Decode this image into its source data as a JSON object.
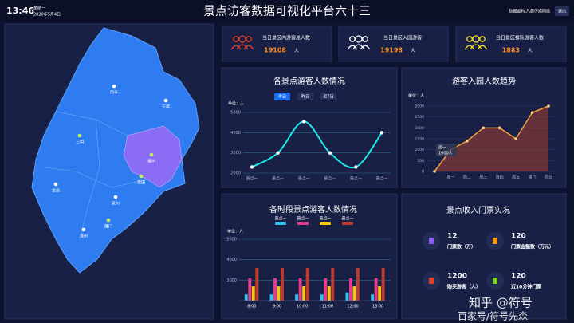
{
  "header": {
    "time": "13:46",
    "weekday": "星期一",
    "date": "2020年5月4日",
    "title": "景点访客数据可视化平台六十三",
    "source": "数据虚构,凡晨传媒网络",
    "exit": "退出"
  },
  "map": {
    "cities": [
      "南平",
      "宁德",
      "三明",
      "福州",
      "莆田",
      "龙岩",
      "泉州",
      "厦门",
      "漳州"
    ]
  },
  "stats": [
    {
      "label": "当日景区内游客总人数",
      "value": 19108,
      "unit": "人",
      "color": "#e8402a"
    },
    {
      "label": "当日景区入园游客",
      "value": 19198,
      "unit": "人",
      "color": "#ffffff"
    },
    {
      "label": "当日景区排队游客人数",
      "value": 1883,
      "unit": "人",
      "color": "#f5e21a"
    }
  ],
  "chart_data": [
    {
      "type": "line",
      "title": "各景点游客人数情况",
      "tabs": [
        "今日",
        "昨日",
        "近7日"
      ],
      "y_label": "单位：人",
      "categories": [
        "景点一",
        "景点一",
        "景点一",
        "景点一",
        "景点一",
        "景点一"
      ],
      "values": [
        2300,
        3000,
        4550,
        3000,
        2300,
        4000
      ],
      "color": "#1de9e9",
      "ylim": [
        2000,
        5000
      ],
      "yticks": [
        2000,
        3000,
        4000,
        5000
      ]
    },
    {
      "type": "area",
      "title": "游客入园人数趋势",
      "y_label": "单位：人",
      "categories": [
        null,
        "周一",
        "周二",
        "周三",
        "周四",
        "周五",
        "周六",
        "周日"
      ],
      "values": [
        0,
        1000,
        1400,
        2000,
        2000,
        1500,
        2700,
        3000
      ],
      "color": "#f0a040",
      "ylim": [
        0,
        3000
      ],
      "yticks": [
        0,
        500,
        1000,
        1500,
        2000,
        2500,
        3000
      ],
      "tooltip": {
        "title": "周一",
        "text": "1000人"
      }
    },
    {
      "type": "bar",
      "title": "各时段景点游客人数情况",
      "y_label": "单位：人",
      "categories": [
        "8:00",
        "9:00",
        "10:00",
        "11:00",
        "12:00",
        "13:00"
      ],
      "series": [
        {
          "name": "景点一",
          "color": "#2bc6f0",
          "values": [
            2300,
            2300,
            2300,
            2300,
            2400,
            2300
          ]
        },
        {
          "name": "景点一",
          "color": "#e8388a",
          "values": [
            3100,
            3100,
            3100,
            3100,
            3100,
            3100
          ]
        },
        {
          "name": "景点一",
          "color": "#f5c518",
          "values": [
            2700,
            2700,
            2700,
            2700,
            2700,
            2700
          ]
        },
        {
          "name": "景点一",
          "color": "#c0392b",
          "values": [
            3600,
            3600,
            3600,
            3600,
            3600,
            3600
          ]
        }
      ],
      "ylim": [
        2000,
        5000
      ],
      "yticks": [
        3000,
        4000,
        5000
      ]
    }
  ],
  "revenue": {
    "title": "景点收入门票实况",
    "items": [
      {
        "value": 12,
        "label": "门票数（万）",
        "color": "#8a5cf5"
      },
      {
        "value": 120,
        "label": "门票金额数（万元）",
        "color": "#f59a1a"
      },
      {
        "value": 1200,
        "label": "购买游客（人）",
        "color": "#e8402a"
      },
      {
        "value": 120,
        "label": "近10分钟门票",
        "color": "#7ed321"
      }
    ]
  },
  "watermark": [
    "知乎 @符号",
    "百家号/符号先森"
  ]
}
